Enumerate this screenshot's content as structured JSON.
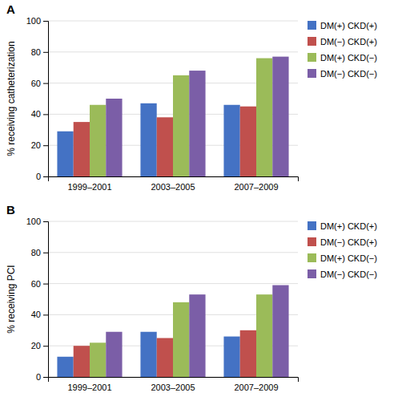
{
  "chart_data": [
    {
      "type": "bar",
      "title": "A",
      "ylabel": "% receiving catheterization",
      "categories": [
        "1999–2001",
        "2003–2005",
        "2007–2009"
      ],
      "series": [
        {
          "name": "DM(+) CKD(+)",
          "color": "#4472C4",
          "values": [
            29,
            47,
            46
          ]
        },
        {
          "name": "DM(−) CKD(+)",
          "color": "#C0504D",
          "values": [
            35,
            38,
            45
          ]
        },
        {
          "name": "DM(+) CKD(−)",
          "color": "#9BBB59",
          "values": [
            46,
            65,
            76
          ]
        },
        {
          "name": "DM(−) CKD(−)",
          "color": "#7B5EA7",
          "values": [
            50,
            68,
            77
          ]
        }
      ],
      "ylim": [
        0,
        100
      ],
      "yticks": [
        0,
        20,
        40,
        60,
        80,
        100
      ],
      "grid": true,
      "legend": "right"
    },
    {
      "type": "bar",
      "title": "B",
      "ylabel": "% receiving PCI",
      "categories": [
        "1999–2001",
        "2003–2005",
        "2007–2009"
      ],
      "series": [
        {
          "name": "DM(+) CKD(+)",
          "color": "#4472C4",
          "values": [
            13,
            29,
            26
          ]
        },
        {
          "name": "DM(−) CKD(+)",
          "color": "#C0504D",
          "values": [
            20,
            25,
            30
          ]
        },
        {
          "name": "DM(+) CKD(−)",
          "color": "#9BBB59",
          "values": [
            22,
            48,
            53
          ]
        },
        {
          "name": "DM(−) CKD(−)",
          "color": "#7B5EA7",
          "values": [
            29,
            53,
            59
          ]
        }
      ],
      "ylim": [
        0,
        100
      ],
      "yticks": [
        0,
        20,
        40,
        60,
        80,
        100
      ],
      "grid": true,
      "legend": "right"
    }
  ]
}
